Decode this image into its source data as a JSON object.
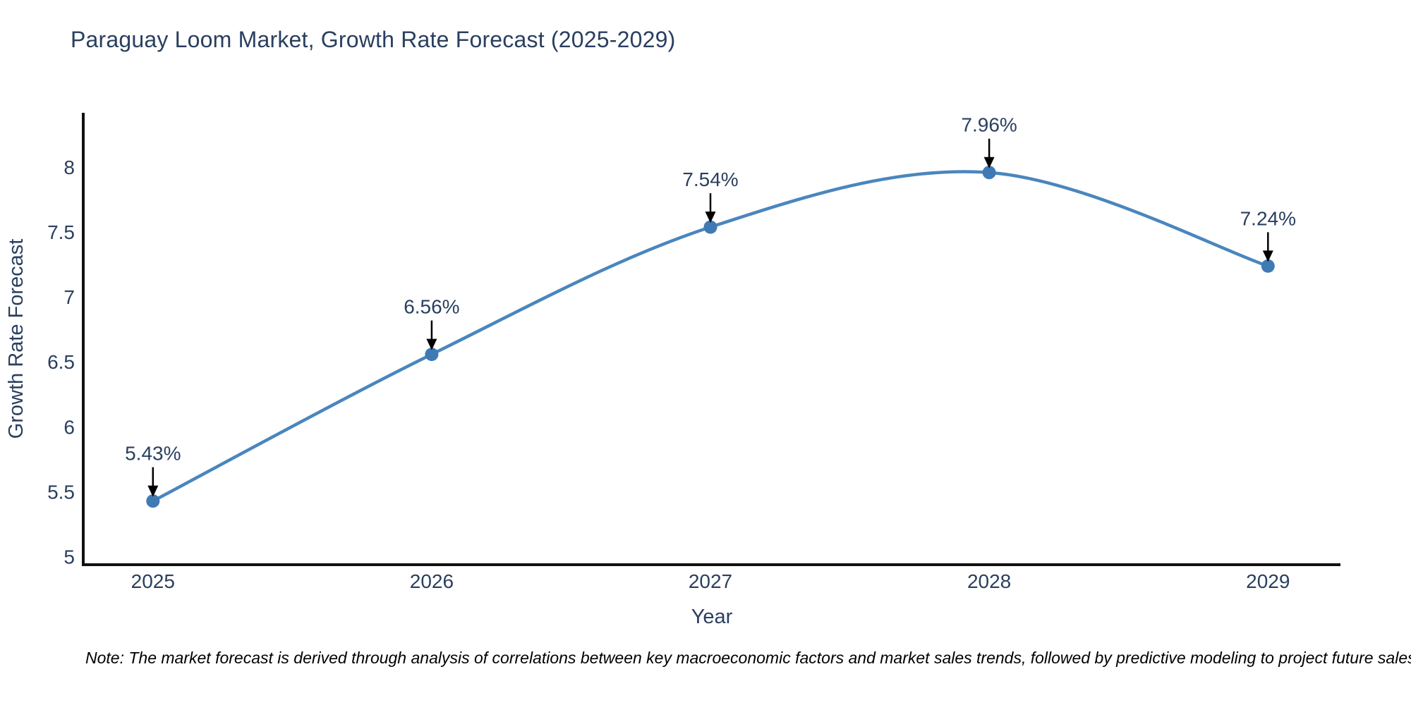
{
  "header": {
    "title": "Paraguay Loom Market, Growth Rate Forecast (2025-2029)"
  },
  "chart_data": {
    "type": "line",
    "title": "Paraguay Loom Market, Growth Rate Forecast (2025-2029)",
    "x": [
      2025,
      2026,
      2027,
      2028,
      2029
    ],
    "series": [
      {
        "name": "Growth Rate Forecast",
        "values": [
          5.43,
          6.56,
          7.54,
          7.96,
          7.24
        ]
      }
    ],
    "point_labels": [
      "5.43%",
      "6.56%",
      "7.54%",
      "7.96%",
      "7.24%"
    ],
    "xlabel": "Year",
    "ylabel": "Growth Rate Forecast",
    "xticks": [
      2025,
      2026,
      2027,
      2028,
      2029
    ],
    "yticks": [
      5,
      5.5,
      6,
      6.5,
      7,
      7.5,
      8
    ],
    "xlim": [
      2024.75,
      2029.26
    ],
    "ylim": [
      4.94,
      8.42
    ],
    "line_shape": "spline",
    "grid": false,
    "legend": "none",
    "annotation_style": "label-with-arrow-down-to-point",
    "colors": {
      "line": "#4a86bd",
      "marker": "#3f7ab5",
      "axis": "#111111",
      "text": "#2a3f5f",
      "annotation_text": "#2a3f5f",
      "arrow": "#000000",
      "note": "#000000",
      "background": "#ffffff"
    }
  },
  "footer": {
    "note": "Note: The market forecast is derived through analysis of correlations between key macroeconomic factors and market sales trends, followed by predictive modeling to project future sales"
  }
}
